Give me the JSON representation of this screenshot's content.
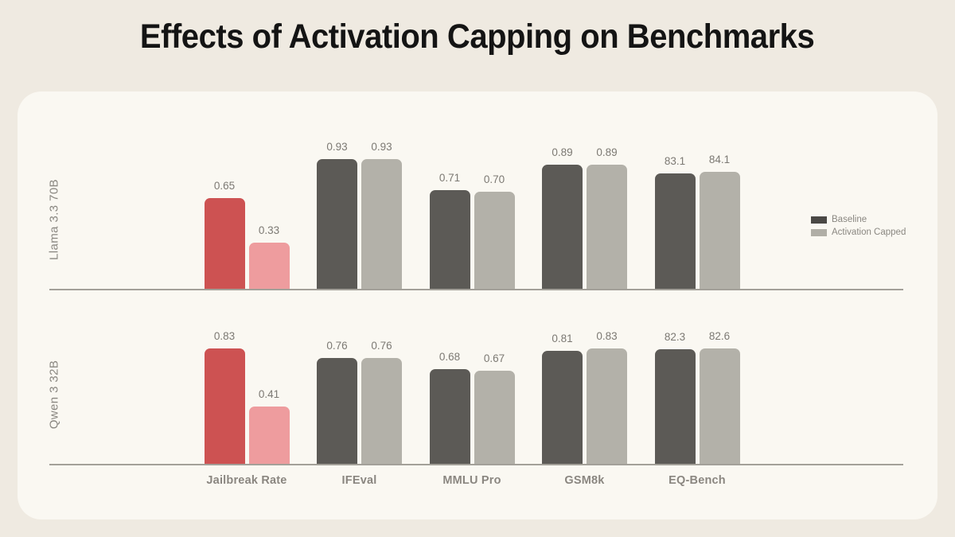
{
  "title": "Effects of Activation Capping on Benchmarks",
  "legend": [
    {
      "label": "Baseline",
      "color": "#4A4845"
    },
    {
      "label": "Activation Capped",
      "color": "#B0AEA6"
    }
  ],
  "chart_data": {
    "type": "bar",
    "title": "Effects of Activation Capping on Benchmarks",
    "categories": [
      "Jailbreak Rate",
      "IFEval",
      "MMLU Pro",
      "GSM8k",
      "EQ-Bench"
    ],
    "legend_position": "top-right",
    "grid": false,
    "ylim": [
      0,
      1.05
    ],
    "panels": [
      {
        "model": "Llama 3.3 70B",
        "series": [
          {
            "name": "Baseline",
            "values": [
              0.65,
              0.93,
              0.71,
              0.89,
              83.1
            ],
            "labels": [
              "0.65",
              "0.93",
              "0.71",
              "0.89",
              "83.1"
            ]
          },
          {
            "name": "Activation Capped",
            "values": [
              0.33,
              0.93,
              0.7,
              0.89,
              84.1
            ],
            "labels": [
              "0.33",
              "0.93",
              "0.70",
              "0.89",
              "84.1"
            ]
          }
        ]
      },
      {
        "model": "Qwen 3 32B",
        "series": [
          {
            "name": "Baseline",
            "values": [
              0.83,
              0.76,
              0.68,
              0.81,
              82.3
            ],
            "labels": [
              "0.83",
              "0.76",
              "0.68",
              "0.81",
              "82.3"
            ]
          },
          {
            "name": "Activation Capped",
            "values": [
              0.41,
              0.76,
              0.67,
              0.83,
              82.6
            ],
            "labels": [
              "0.41",
              "0.76",
              "0.67",
              "0.83",
              "82.6"
            ]
          }
        ]
      }
    ],
    "colors": {
      "baseline": "#5C5A56",
      "capped": "#B3B1A9",
      "baseline_highlight": "#CD5252",
      "capped_highlight": "#EE9C9E",
      "highlight_category": "Jailbreak Rate",
      "axis": "#A3A099"
    }
  }
}
